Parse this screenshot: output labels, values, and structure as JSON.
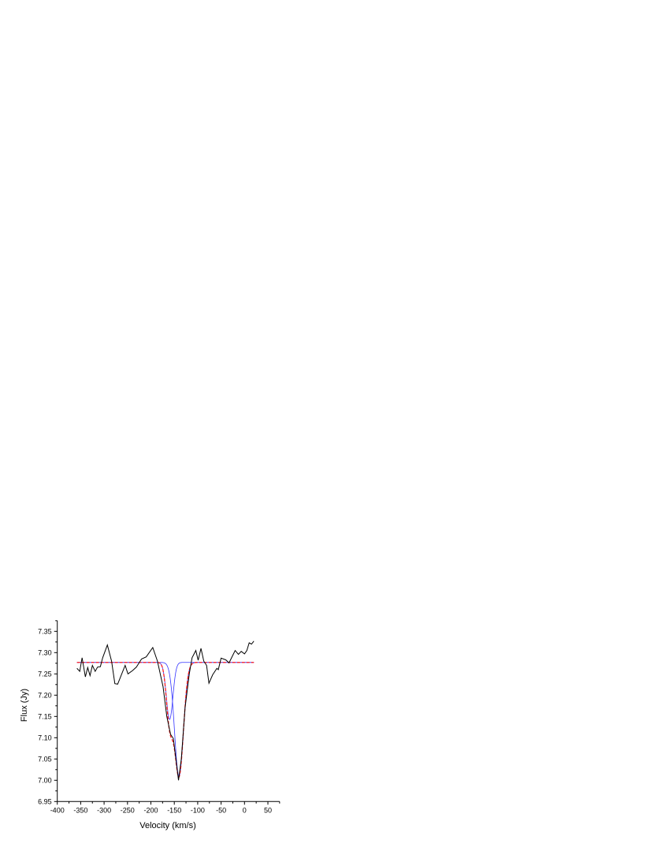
{
  "chart_data": {
    "type": "line",
    "title": "",
    "xlabel": "Velocity (km/s)",
    "ylabel": "Flux (Jy)",
    "xlim": [
      -400,
      75
    ],
    "ylim": [
      6.95,
      7.375
    ],
    "xticks": [
      -400,
      -350,
      -300,
      -250,
      -200,
      -150,
      -100,
      -50,
      0,
      50
    ],
    "yticks": [
      6.95,
      7.0,
      7.05,
      7.1,
      7.15,
      7.2,
      7.25,
      7.3,
      7.35
    ],
    "ytick_labels": [
      "6.95",
      "7.00",
      "7.05",
      "7.10",
      "7.15",
      "7.20",
      "7.25",
      "7.30",
      "7.35"
    ],
    "grid": false,
    "colors": {
      "data": "#000000",
      "components": "#3333ff",
      "fit": "#ff2020"
    },
    "data_series": {
      "x": [
        -358,
        -352,
        -347,
        -340,
        -335,
        -330,
        -325,
        -319,
        -314,
        -308,
        -303,
        -293,
        -284,
        -277,
        -271,
        -255,
        -249,
        -239,
        -231,
        -220,
        -210,
        -196,
        -186,
        -174,
        -166,
        -158,
        -152,
        -141,
        -135,
        -127,
        -118,
        -112,
        -104,
        -99,
        -93,
        -87,
        -81,
        -76,
        -68,
        -59,
        -56,
        -50,
        -40,
        -33,
        -20,
        -13,
        -7,
        0,
        5,
        10,
        15,
        20
      ],
      "y": [
        7.263,
        7.256,
        7.288,
        7.243,
        7.265,
        7.246,
        7.27,
        7.256,
        7.266,
        7.267,
        7.288,
        7.318,
        7.28,
        7.227,
        7.226,
        7.27,
        7.25,
        7.258,
        7.266,
        7.285,
        7.29,
        7.312,
        7.28,
        7.22,
        7.15,
        7.108,
        7.098,
        7.0,
        7.05,
        7.17,
        7.25,
        7.288,
        7.305,
        7.282,
        7.31,
        7.28,
        7.27,
        7.228,
        7.248,
        7.263,
        7.26,
        7.287,
        7.283,
        7.276,
        7.305,
        7.296,
        7.303,
        7.297,
        7.305,
        7.323,
        7.32,
        7.327
      ]
    },
    "fit_model": {
      "baseline": 7.277,
      "x_range": [
        -358,
        20
      ],
      "components": [
        {
          "center": -160,
          "depth": 0.134,
          "sigma": 7
        },
        {
          "center": -140,
          "depth": 0.267,
          "sigma": 9.5
        }
      ]
    }
  }
}
